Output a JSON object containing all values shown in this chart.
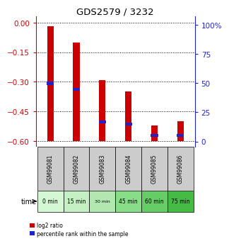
{
  "title": "GDS2579 / 3232",
  "samples": [
    "GSM99081",
    "GSM99082",
    "GSM99083",
    "GSM99084",
    "GSM99085",
    "GSM99086"
  ],
  "time_labels": [
    "0 min",
    "15 min",
    "30 min",
    "45 min",
    "60 min",
    "75 min"
  ],
  "log2_ratio_top": [
    -0.02,
    -0.1,
    -0.29,
    -0.35,
    -0.52,
    -0.5
  ],
  "log2_ratio_bottom": [
    -0.602,
    -0.602,
    -0.602,
    -0.602,
    -0.602,
    -0.602
  ],
  "percentile_rank_pct": [
    50,
    45,
    17,
    15,
    5,
    5
  ],
  "bar_color": "#cc0000",
  "blue_marker_color": "#2222cc",
  "ylim_left": [
    -0.63,
    0.03
  ],
  "ylim_right": [
    -4.725,
    107.25
  ],
  "yticks_left": [
    0,
    -0.15,
    -0.3,
    -0.45,
    -0.6
  ],
  "yticks_right": [
    0,
    25,
    50,
    75,
    100
  ],
  "left_axis_color": "#cc0000",
  "right_axis_color": "#2222cc",
  "sample_bg_color": "#cccccc",
  "time_bg_colors": [
    "#d4f7d4",
    "#c4f0c4",
    "#b0e8b0",
    "#88dd88",
    "#66cc66",
    "#44bb44"
  ],
  "bar_width": 0.25,
  "figsize": [
    3.21,
    3.45
  ],
  "dpi": 100
}
